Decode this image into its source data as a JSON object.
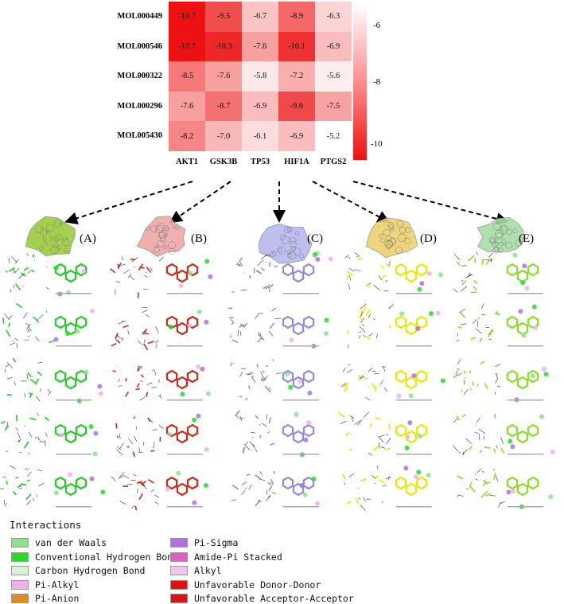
{
  "chart_data": {
    "type": "heatmap",
    "rows": [
      "MOL000449",
      "MOL000546",
      "MOL000322",
      "MOL000296",
      "MOL005430"
    ],
    "columns": [
      "AKT1",
      "GSK3B",
      "TP53",
      "HIF1A",
      "PTGS2"
    ],
    "values": [
      [
        -10.7,
        -9.5,
        -6.7,
        -8.9,
        -6.3
      ],
      [
        -10.7,
        -10.3,
        -7.6,
        -10.1,
        -6.9
      ],
      [
        -8.5,
        -7.6,
        -5.8,
        -7.2,
        -5.6
      ],
      [
        -7.6,
        -8.7,
        -6.9,
        -9.6,
        -7.5
      ],
      [
        -8.2,
        -7.0,
        -6.1,
        -6.9,
        -5.2
      ]
    ],
    "value_labels": [
      [
        "-10.7",
        "-9.5",
        "-6.7",
        "-8.9",
        "-6.3"
      ],
      [
        "-10.7",
        "-10.3",
        "-7.6",
        "-10.1",
        "-6.9"
      ],
      [
        "-8.5",
        "-7.6",
        "-5.8",
        "-7.2",
        "-5.6"
      ],
      [
        "-7.6",
        "-8.7",
        "-6.9",
        "-9.6",
        "-7.5"
      ],
      [
        "-8.2",
        "-7.0",
        "-6.1",
        "-6.9",
        "-5.2"
      ]
    ],
    "colorbar": {
      "ticks": [
        "-6",
        "-8",
        "-10"
      ],
      "min": -10.7,
      "max": -5.2,
      "low_color": "#ee1111",
      "high_color": "#ffffff"
    }
  },
  "panels": [
    {
      "label": "(A)",
      "target": "AKT1",
      "color": "#9ccc3c",
      "ligand_color": "#22cc22"
    },
    {
      "label": "(B)",
      "target": "GSK3B",
      "color": "#f0a8a8",
      "ligand_color": "#cc2a1a"
    },
    {
      "label": "(C)",
      "target": "TP53",
      "color": "#b8b8ee",
      "ligand_color": "#8c8ce0"
    },
    {
      "label": "(D)",
      "target": "HIF1A",
      "color": "#ecd070",
      "ligand_color": "#e8e800"
    },
    {
      "label": "(E)",
      "target": "PTGS2",
      "color": "#a8dca8",
      "ligand_color": "#88e022"
    }
  ],
  "legend": {
    "title": "Interactions",
    "items": [
      {
        "label": "van der Waals",
        "color": "#8ee08e"
      },
      {
        "label": "Conventional Hydrogen Bond",
        "color": "#22dd22"
      },
      {
        "label": "Carbon Hydrogen Bond",
        "color": "#d8f2d8"
      },
      {
        "label": "Pi-Alkyl",
        "color": "#f0b0f0"
      },
      {
        "label": "Pi-Anion",
        "color": "#e08a20"
      },
      {
        "label": "Pi-Sigma",
        "color": "#b070e0"
      },
      {
        "label": "Amide-Pi Stacked",
        "color": "#e060c0"
      },
      {
        "label": "Alkyl",
        "color": "#f4c4ec"
      },
      {
        "label": "Unfavorable Donor-Donor",
        "color": "#e01010"
      },
      {
        "label": "Unfavorable Acceptor-Acceptor",
        "color": "#d01818"
      }
    ]
  },
  "icons": {
    "protein": "protein-surface-icon",
    "molecule": "ligand-interaction-icon"
  }
}
